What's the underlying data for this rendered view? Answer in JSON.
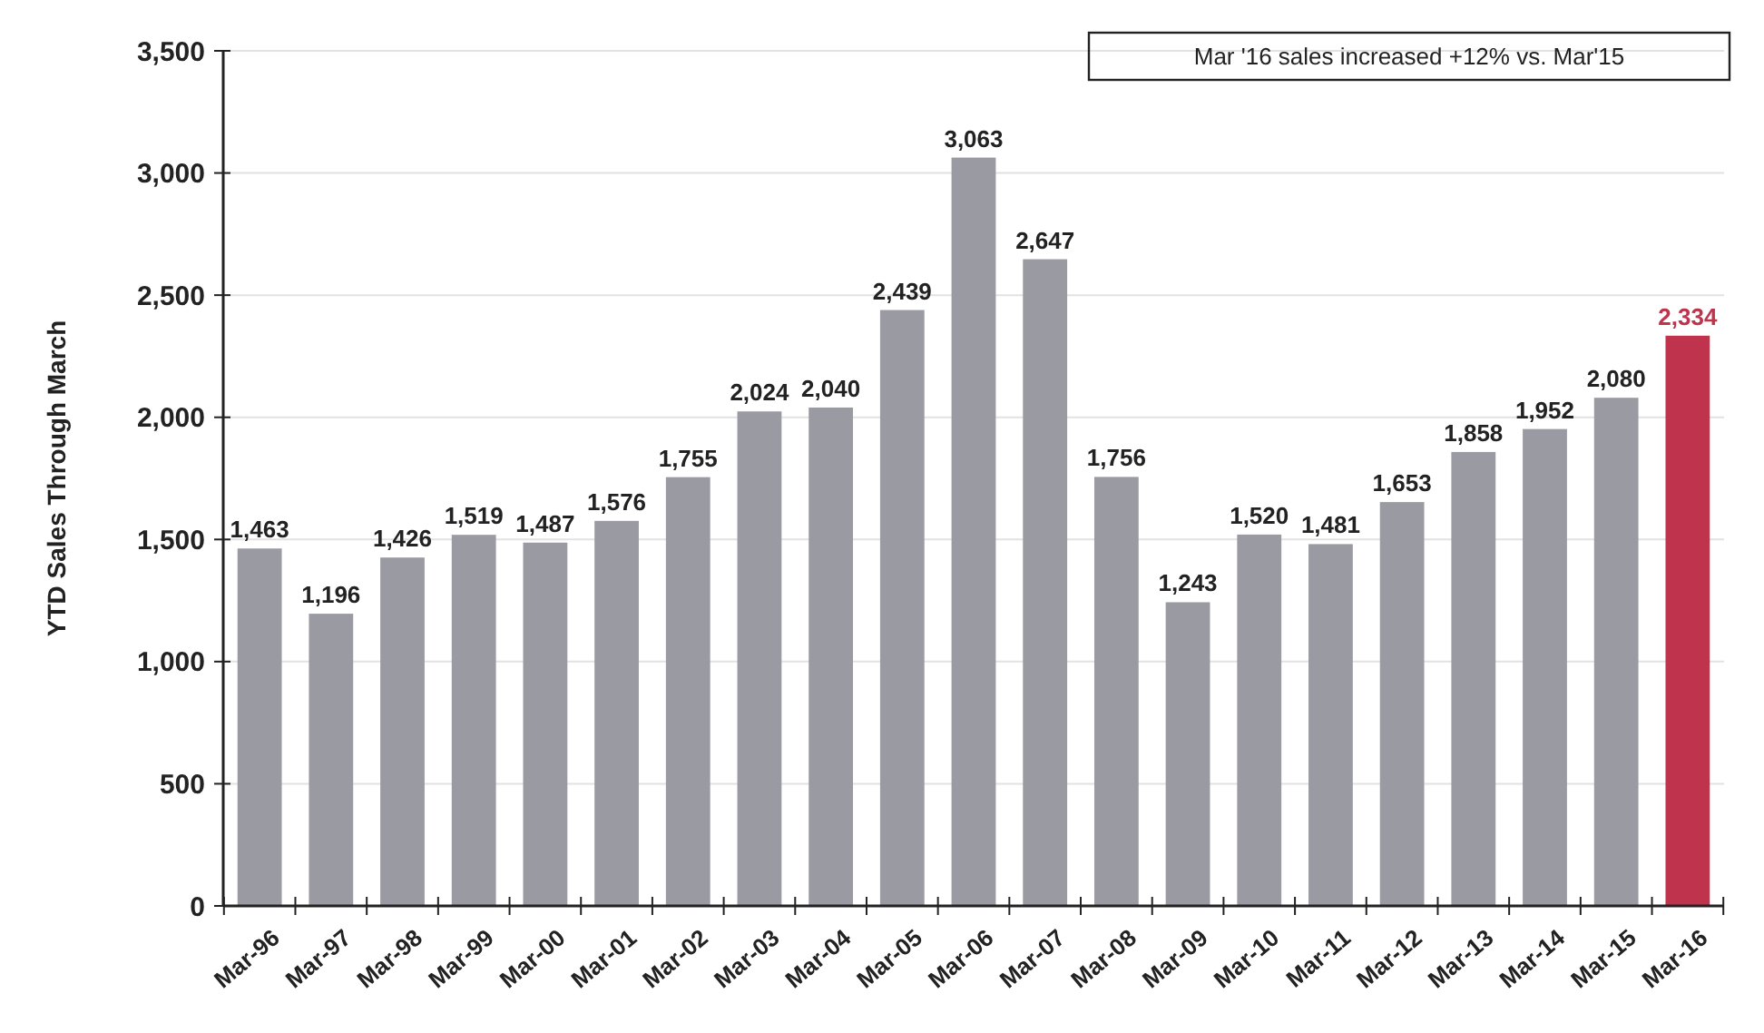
{
  "chart_data": {
    "type": "bar",
    "ylabel": "YTD Sales Through March",
    "categories": [
      "Mar-96",
      "Mar-97",
      "Mar-98",
      "Mar-99",
      "Mar-00",
      "Mar-01",
      "Mar-02",
      "Mar-03",
      "Mar-04",
      "Mar-05",
      "Mar-06",
      "Mar-07",
      "Mar-08",
      "Mar-09",
      "Mar-10",
      "Mar-11",
      "Mar-12",
      "Mar-13",
      "Mar-14",
      "Mar-15",
      "Mar-16"
    ],
    "values": [
      1463,
      1196,
      1426,
      1519,
      1487,
      1576,
      1755,
      2024,
      2040,
      2439,
      3063,
      2647,
      1756,
      1243,
      1520,
      1481,
      1653,
      1858,
      1952,
      2080,
      2334
    ],
    "colors": [
      "#9a9aa3",
      "#9a9aa3",
      "#9a9aa3",
      "#9a9aa3",
      "#9a9aa3",
      "#9a9aa3",
      "#9a9aa3",
      "#9a9aa3",
      "#9a9aa3",
      "#9a9aa3",
      "#9a9aa3",
      "#9a9aa3",
      "#9a9aa3",
      "#9a9aa3",
      "#9a9aa3",
      "#9a9aa3",
      "#9a9aa3",
      "#9a9aa3",
      "#9a9aa3",
      "#9a9aa3",
      "#c0334d"
    ],
    "ylim": [
      0,
      3500
    ],
    "yticks": [
      {
        "value": 0,
        "label": "0"
      },
      {
        "value": 500,
        "label": "500"
      },
      {
        "value": 1000,
        "label": "1,000"
      },
      {
        "value": 1500,
        "label": "1,500"
      },
      {
        "value": 2000,
        "label": "2,000"
      },
      {
        "value": 2500,
        "label": "2,500"
      },
      {
        "value": 3000,
        "label": "3,000"
      },
      {
        "value": 3500,
        "label": "3,500"
      }
    ],
    "grid": "y",
    "value_labels": [
      "1,463",
      "1,196",
      "1,426",
      "1,519",
      "1,487",
      "1,576",
      "1,755",
      "2,024",
      "2,040",
      "2,439",
      "3,063",
      "2,647",
      "1,756",
      "1,243",
      "1,520",
      "1,481",
      "1,653",
      "1,858",
      "1,952",
      "2,080",
      "2,334"
    ],
    "annotations": [
      "Mar '16 sales increased +12% vs. Mar'15"
    ]
  }
}
